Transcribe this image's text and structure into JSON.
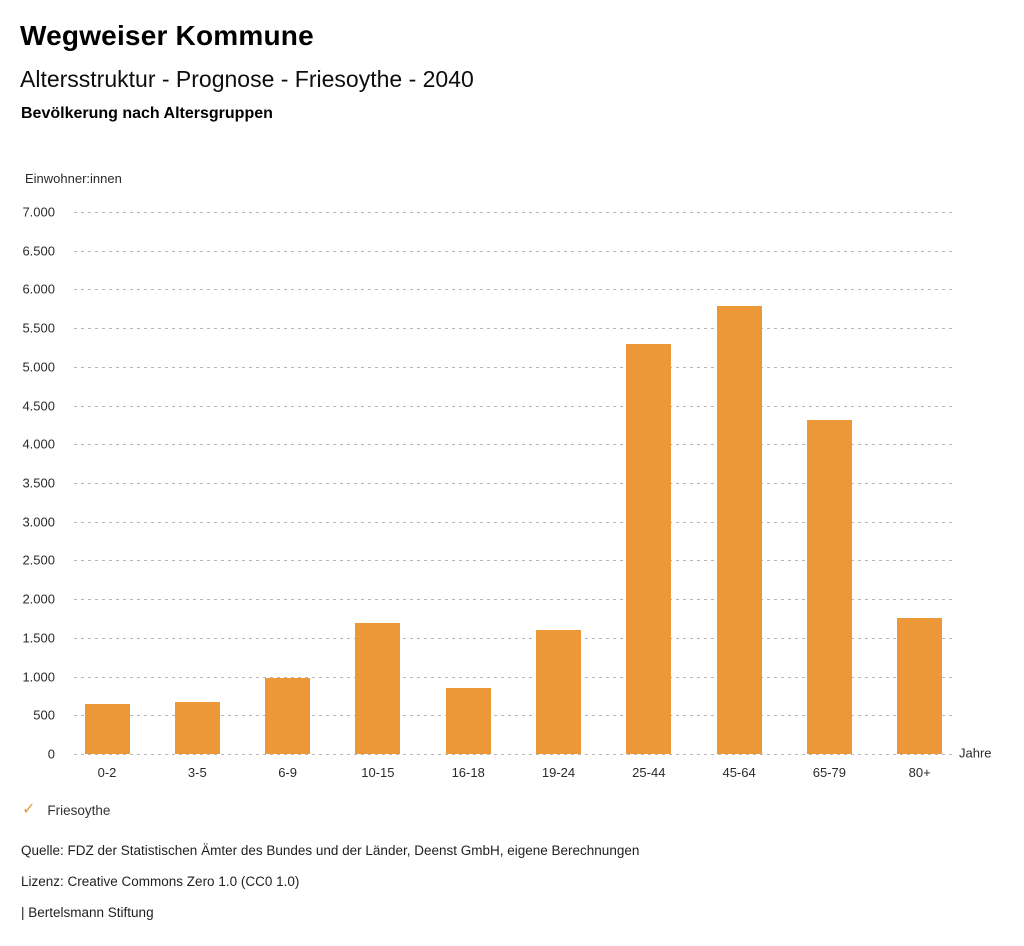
{
  "header": {
    "title": "Wegweiser Kommune",
    "subtitle": "Altersstruktur - Prognose - Friesoythe - 2040",
    "chart_heading": "Bevölkerung nach Altersgruppen"
  },
  "chart_data": {
    "type": "bar",
    "title": "Bevölkerung nach Altersgruppen",
    "unit_label": "Einwohner:innen",
    "xlabel": "Jahre",
    "ylabel": "Einwohner:innen",
    "categories": [
      "0-2",
      "3-5",
      "6-9",
      "10-15",
      "16-18",
      "19-24",
      "25-44",
      "45-64",
      "65-79",
      "80+"
    ],
    "series": [
      {
        "name": "Friesoythe",
        "values": [
          650,
          670,
          980,
          1690,
          850,
          1600,
          5300,
          5790,
          4310,
          1760
        ]
      }
    ],
    "ylim": [
      0,
      7000
    ],
    "ytick_step": 500,
    "ytick_labels": [
      "0",
      "500",
      "1.000",
      "1.500",
      "2.000",
      "2.500",
      "3.000",
      "3.500",
      "4.000",
      "4.500",
      "5.000",
      "5.500",
      "6.000",
      "6.500",
      "7.000"
    ],
    "grid": "horizontal-dotted",
    "legend_position": "bottom-left",
    "bar_color": "#ED9838"
  },
  "legend": {
    "check_icon": "✓",
    "label": "Friesoythe"
  },
  "footer": {
    "source": "Quelle: FDZ der Statistischen Ämter des Bundes und der Länder, Deenst GmbH, eigene Berechnungen",
    "license": "Lizenz: Creative Commons Zero 1.0 (CC0 1.0)",
    "attribution": "| Bertelsmann Stiftung"
  },
  "colors": {
    "accent": "#ED9838",
    "grid": "#B6B6B6",
    "text": "#1A1A1A",
    "background": "#FFFFFF"
  }
}
